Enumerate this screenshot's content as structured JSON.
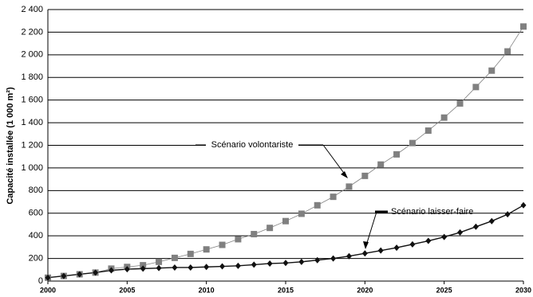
{
  "chart_data": {
    "type": "line",
    "ylabel": "Capacité installée (1 000 m²)",
    "x": [
      2000,
      2001,
      2002,
      2003,
      2004,
      2005,
      2006,
      2007,
      2008,
      2009,
      2010,
      2011,
      2012,
      2013,
      2014,
      2015,
      2016,
      2017,
      2018,
      2019,
      2020,
      2021,
      2022,
      2023,
      2024,
      2025,
      2026,
      2027,
      2028,
      2029,
      2030
    ],
    "series": [
      {
        "name": "Scénario volontariste",
        "color": "#808080",
        "marker": "square",
        "values": [
          30,
          45,
          60,
          75,
          110,
          125,
          140,
          170,
          205,
          240,
          280,
          320,
          370,
          415,
          470,
          530,
          595,
          670,
          745,
          835,
          930,
          1030,
          1120,
          1220,
          1330,
          1445,
          1570,
          1715,
          1860,
          2030,
          2250
        ]
      },
      {
        "name": "Scénario laisser-faire",
        "color": "#111111",
        "marker": "diamond",
        "values": [
          30,
          45,
          60,
          75,
          95,
          105,
          110,
          115,
          120,
          120,
          125,
          130,
          135,
          145,
          155,
          160,
          170,
          185,
          200,
          220,
          245,
          270,
          295,
          325,
          355,
          390,
          430,
          480,
          530,
          590,
          670
        ]
      }
    ],
    "xlim": [
      2000,
      2030
    ],
    "xticks": [
      2000,
      2005,
      2010,
      2015,
      2020,
      2025,
      2030
    ],
    "ylim": [
      0,
      2400
    ],
    "yticks": [
      0,
      200,
      400,
      600,
      800,
      {
        "value": 1000,
        "label": "1 000"
      },
      {
        "value": 1200,
        "label": "1 200"
      },
      {
        "value": 1400,
        "label": "1 400"
      },
      {
        "value": 1600,
        "label": "1 600"
      },
      {
        "value": 1800,
        "label": "1 800"
      },
      {
        "value": 2000,
        "label": "2 000"
      },
      {
        "value": 2200,
        "label": "2 200"
      },
      {
        "value": 2400,
        "label": "2 400"
      }
    ],
    "grid": true
  }
}
